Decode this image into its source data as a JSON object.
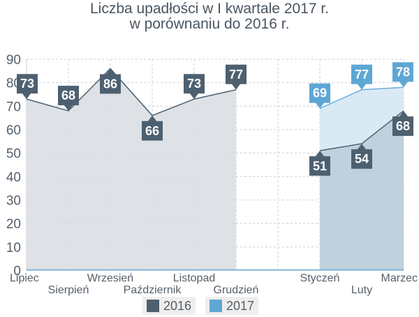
{
  "chart_data": {
    "type": "area",
    "title_lines": [
      "Liczba upadłości w I kwartale 2017 r.",
      "w porównaniu do 2016 r."
    ],
    "ylim": [
      0,
      90
    ],
    "yticks": [
      "0",
      "10",
      "20",
      "30",
      "40",
      "50",
      "60",
      "70",
      "80",
      "90"
    ],
    "categories": [
      "Lipiec",
      "Sierpień",
      "Wrzesień",
      "Październik",
      "Listopad",
      "Grudzień",
      "",
      "Styczeń",
      "Luty",
      "Marzec"
    ],
    "grid": true,
    "legend_position": "bottom",
    "series": [
      {
        "name": "2016",
        "color": "#4d6070",
        "values": [
          73,
          68,
          86,
          66,
          73,
          77,
          null,
          51,
          54,
          68
        ],
        "labels": [
          "73",
          "68",
          "86",
          "66",
          "73",
          "77",
          "",
          "51",
          "54",
          "68"
        ]
      },
      {
        "name": "2017",
        "color": "#5ea7d4",
        "values": [
          null,
          null,
          null,
          null,
          null,
          null,
          null,
          69,
          77,
          78
        ],
        "labels": [
          "",
          "",
          "",
          "",
          "",
          "",
          "",
          "69",
          "77",
          "78"
        ]
      }
    ]
  }
}
